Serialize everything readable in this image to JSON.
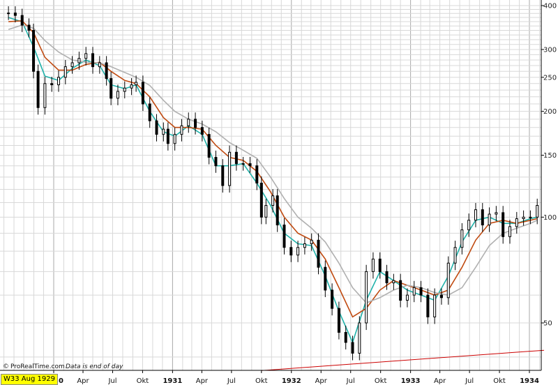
{
  "chart_data": {
    "type": "line",
    "title": "",
    "xlabel": "",
    "ylabel": "",
    "y_scale": "log",
    "ylim": [
      36,
      410
    ],
    "y_ticks": [
      50,
      100,
      150,
      200,
      250,
      300,
      400
    ],
    "grid": true,
    "x_tick_labels": [
      {
        "label": "1930",
        "date": "1930-01-01",
        "year": true
      },
      {
        "label": "Apr",
        "date": "1930-04-01",
        "year": false
      },
      {
        "label": "Jul",
        "date": "1930-07-01",
        "year": false
      },
      {
        "label": "Okt",
        "date": "1930-10-01",
        "year": false
      },
      {
        "label": "1931",
        "date": "1931-01-01",
        "year": true
      },
      {
        "label": "Apr",
        "date": "1931-04-01",
        "year": false
      },
      {
        "label": "Jul",
        "date": "1931-07-01",
        "year": false
      },
      {
        "label": "Okt",
        "date": "1931-10-01",
        "year": false
      },
      {
        "label": "1932",
        "date": "1932-01-01",
        "year": true
      },
      {
        "label": "Apr",
        "date": "1932-04-01",
        "year": false
      },
      {
        "label": "Jul",
        "date": "1932-07-01",
        "year": false
      },
      {
        "label": "Okt",
        "date": "1932-10-01",
        "year": false
      },
      {
        "label": "1933",
        "date": "1933-01-01",
        "year": true
      },
      {
        "label": "Apr",
        "date": "1933-04-01",
        "year": false
      },
      {
        "label": "Jul",
        "date": "1933-07-01",
        "year": false
      },
      {
        "label": "Okt",
        "date": "1933-10-01",
        "year": false
      },
      {
        "label": "1934",
        "date": "1934-01-01",
        "year": true
      }
    ],
    "series": [
      {
        "name": "",
        "kind": "candlestick",
        "color": "#000000",
        "points": [
          {
            "x": "1929-08-15",
            "y": 381
          },
          {
            "x": "1929-09-05",
            "y": 375
          },
          {
            "x": "1929-09-26",
            "y": 352
          },
          {
            "x": "1929-10-17",
            "y": 340
          },
          {
            "x": "1929-10-31",
            "y": 260
          },
          {
            "x": "1929-11-14",
            "y": 205
          },
          {
            "x": "1929-12-05",
            "y": 240
          },
          {
            "x": "1929-12-26",
            "y": 238
          },
          {
            "x": "1930-01-16",
            "y": 250
          },
          {
            "x": "1930-02-06",
            "y": 268
          },
          {
            "x": "1930-02-27",
            "y": 275
          },
          {
            "x": "1930-03-20",
            "y": 283
          },
          {
            "x": "1930-04-10",
            "y": 292
          },
          {
            "x": "1930-05-01",
            "y": 268
          },
          {
            "x": "1930-05-22",
            "y": 275
          },
          {
            "x": "1930-06-12",
            "y": 248
          },
          {
            "x": "1930-06-26",
            "y": 218
          },
          {
            "x": "1930-07-17",
            "y": 228
          },
          {
            "x": "1930-08-07",
            "y": 233
          },
          {
            "x": "1930-08-28",
            "y": 238
          },
          {
            "x": "1930-09-11",
            "y": 242
          },
          {
            "x": "1930-10-02",
            "y": 210
          },
          {
            "x": "1930-10-23",
            "y": 188
          },
          {
            "x": "1930-11-13",
            "y": 172
          },
          {
            "x": "1930-12-04",
            "y": 178
          },
          {
            "x": "1930-12-18",
            "y": 162
          },
          {
            "x": "1931-01-08",
            "y": 172
          },
          {
            "x": "1931-01-29",
            "y": 182
          },
          {
            "x": "1931-02-19",
            "y": 190
          },
          {
            "x": "1931-03-12",
            "y": 180
          },
          {
            "x": "1931-04-02",
            "y": 172
          },
          {
            "x": "1931-04-23",
            "y": 148
          },
          {
            "x": "1931-05-14",
            "y": 140
          },
          {
            "x": "1931-06-04",
            "y": 123
          },
          {
            "x": "1931-06-25",
            "y": 153
          },
          {
            "x": "1931-07-16",
            "y": 142
          },
          {
            "x": "1931-08-06",
            "y": 142
          },
          {
            "x": "1931-08-27",
            "y": 140
          },
          {
            "x": "1931-09-17",
            "y": 125
          },
          {
            "x": "1931-10-01",
            "y": 100
          },
          {
            "x": "1931-10-15",
            "y": 108
          },
          {
            "x": "1931-11-05",
            "y": 115
          },
          {
            "x": "1931-11-19",
            "y": 95
          },
          {
            "x": "1931-12-10",
            "y": 82
          },
          {
            "x": "1931-12-31",
            "y": 78
          },
          {
            "x": "1932-01-21",
            "y": 82
          },
          {
            "x": "1932-02-11",
            "y": 84
          },
          {
            "x": "1932-03-03",
            "y": 86
          },
          {
            "x": "1932-03-24",
            "y": 72
          },
          {
            "x": "1932-04-14",
            "y": 62
          },
          {
            "x": "1932-05-05",
            "y": 55
          },
          {
            "x": "1932-05-26",
            "y": 47
          },
          {
            "x": "1932-06-16",
            "y": 44
          },
          {
            "x": "1932-07-07",
            "y": 41
          },
          {
            "x": "1932-07-28",
            "y": 50
          },
          {
            "x": "1932-08-18",
            "y": 70
          },
          {
            "x": "1932-09-08",
            "y": 76
          },
          {
            "x": "1932-09-29",
            "y": 70
          },
          {
            "x": "1932-10-20",
            "y": 65
          },
          {
            "x": "1932-11-10",
            "y": 66
          },
          {
            "x": "1932-12-01",
            "y": 58
          },
          {
            "x": "1932-12-22",
            "y": 60
          },
          {
            "x": "1933-01-12",
            "y": 63
          },
          {
            "x": "1933-02-02",
            "y": 60
          },
          {
            "x": "1933-02-23",
            "y": 52
          },
          {
            "x": "1933-03-16",
            "y": 60
          },
          {
            "x": "1933-04-06",
            "y": 59
          },
          {
            "x": "1933-04-27",
            "y": 74
          },
          {
            "x": "1933-05-18",
            "y": 82
          },
          {
            "x": "1933-06-08",
            "y": 92
          },
          {
            "x": "1933-06-29",
            "y": 98
          },
          {
            "x": "1933-07-20",
            "y": 105
          },
          {
            "x": "1933-08-10",
            "y": 95
          },
          {
            "x": "1933-08-31",
            "y": 102
          },
          {
            "x": "1933-09-21",
            "y": 103
          },
          {
            "x": "1933-10-12",
            "y": 88
          },
          {
            "x": "1933-11-02",
            "y": 94
          },
          {
            "x": "1933-11-23",
            "y": 99
          },
          {
            "x": "1933-12-14",
            "y": 100
          },
          {
            "x": "1934-01-04",
            "y": 100
          },
          {
            "x": "1934-01-25",
            "y": 108
          }
        ]
      },
      {
        "name": "",
        "kind": "line",
        "color": "#20b2aa",
        "points": [
          {
            "x": "1929-08-15",
            "y": 370
          },
          {
            "x": "1929-09-26",
            "y": 360
          },
          {
            "x": "1929-10-31",
            "y": 305
          },
          {
            "x": "1929-12-05",
            "y": 252
          },
          {
            "x": "1930-01-16",
            "y": 245
          },
          {
            "x": "1930-02-27",
            "y": 265
          },
          {
            "x": "1930-04-10",
            "y": 280
          },
          {
            "x": "1930-05-22",
            "y": 270
          },
          {
            "x": "1930-06-26",
            "y": 238
          },
          {
            "x": "1930-08-07",
            "y": 232
          },
          {
            "x": "1930-09-11",
            "y": 238
          },
          {
            "x": "1930-10-23",
            "y": 200
          },
          {
            "x": "1930-12-04",
            "y": 175
          },
          {
            "x": "1931-01-08",
            "y": 170
          },
          {
            "x": "1931-02-19",
            "y": 182
          },
          {
            "x": "1931-04-02",
            "y": 172
          },
          {
            "x": "1931-05-14",
            "y": 140
          },
          {
            "x": "1931-06-25",
            "y": 140
          },
          {
            "x": "1931-08-06",
            "y": 142
          },
          {
            "x": "1931-09-17",
            "y": 125
          },
          {
            "x": "1931-10-29",
            "y": 108
          },
          {
            "x": "1931-12-10",
            "y": 90
          },
          {
            "x": "1932-01-21",
            "y": 84
          },
          {
            "x": "1932-03-03",
            "y": 83
          },
          {
            "x": "1932-04-14",
            "y": 68
          },
          {
            "x": "1932-05-26",
            "y": 54
          },
          {
            "x": "1932-07-07",
            "y": 44
          },
          {
            "x": "1932-08-18",
            "y": 58
          },
          {
            "x": "1932-09-29",
            "y": 70
          },
          {
            "x": "1932-11-10",
            "y": 66
          },
          {
            "x": "1932-12-22",
            "y": 62
          },
          {
            "x": "1933-02-02",
            "y": 60
          },
          {
            "x": "1933-03-16",
            "y": 58
          },
          {
            "x": "1933-04-27",
            "y": 68
          },
          {
            "x": "1933-06-08",
            "y": 85
          },
          {
            "x": "1933-07-20",
            "y": 98
          },
          {
            "x": "1933-08-31",
            "y": 100
          },
          {
            "x": "1933-10-12",
            "y": 96
          },
          {
            "x": "1933-11-23",
            "y": 96
          },
          {
            "x": "1934-01-04",
            "y": 99
          },
          {
            "x": "1934-01-25",
            "y": 100
          }
        ]
      },
      {
        "name": "",
        "kind": "line",
        "color": "#c04a10",
        "points": [
          {
            "x": "1929-08-15",
            "y": 360
          },
          {
            "x": "1929-09-26",
            "y": 362
          },
          {
            "x": "1929-10-31",
            "y": 335
          },
          {
            "x": "1929-12-05",
            "y": 285
          },
          {
            "x": "1930-01-16",
            "y": 262
          },
          {
            "x": "1930-02-27",
            "y": 262
          },
          {
            "x": "1930-04-10",
            "y": 272
          },
          {
            "x": "1930-05-22",
            "y": 276
          },
          {
            "x": "1930-06-26",
            "y": 260
          },
          {
            "x": "1930-08-07",
            "y": 245
          },
          {
            "x": "1930-09-11",
            "y": 240
          },
          {
            "x": "1930-10-23",
            "y": 220
          },
          {
            "x": "1930-12-04",
            "y": 192
          },
          {
            "x": "1931-01-08",
            "y": 180
          },
          {
            "x": "1931-02-19",
            "y": 180
          },
          {
            "x": "1931-04-02",
            "y": 178
          },
          {
            "x": "1931-05-14",
            "y": 160
          },
          {
            "x": "1931-06-25",
            "y": 148
          },
          {
            "x": "1931-08-06",
            "y": 145
          },
          {
            "x": "1931-09-17",
            "y": 135
          },
          {
            "x": "1931-10-29",
            "y": 118
          },
          {
            "x": "1931-12-10",
            "y": 100
          },
          {
            "x": "1932-01-21",
            "y": 90
          },
          {
            "x": "1932-03-03",
            "y": 86
          },
          {
            "x": "1932-04-14",
            "y": 76
          },
          {
            "x": "1932-05-26",
            "y": 63
          },
          {
            "x": "1932-07-07",
            "y": 52
          },
          {
            "x": "1932-08-18",
            "y": 55
          },
          {
            "x": "1932-09-29",
            "y": 62
          },
          {
            "x": "1932-11-10",
            "y": 66
          },
          {
            "x": "1932-12-22",
            "y": 64
          },
          {
            "x": "1933-02-02",
            "y": 62
          },
          {
            "x": "1933-03-16",
            "y": 60
          },
          {
            "x": "1933-04-27",
            "y": 62
          },
          {
            "x": "1933-06-08",
            "y": 72
          },
          {
            "x": "1933-07-20",
            "y": 86
          },
          {
            "x": "1933-08-31",
            "y": 96
          },
          {
            "x": "1933-10-12",
            "y": 98
          },
          {
            "x": "1933-11-23",
            "y": 96
          },
          {
            "x": "1934-01-04",
            "y": 98
          },
          {
            "x": "1934-01-25",
            "y": 99
          }
        ]
      },
      {
        "name": "",
        "kind": "line",
        "color": "#b0b0b0",
        "points": [
          {
            "x": "1929-08-15",
            "y": 342
          },
          {
            "x": "1929-09-26",
            "y": 352
          },
          {
            "x": "1929-10-31",
            "y": 345
          },
          {
            "x": "1929-12-05",
            "y": 318
          },
          {
            "x": "1930-01-16",
            "y": 295
          },
          {
            "x": "1930-02-27",
            "y": 280
          },
          {
            "x": "1930-04-10",
            "y": 276
          },
          {
            "x": "1930-05-22",
            "y": 275
          },
          {
            "x": "1930-06-26",
            "y": 268
          },
          {
            "x": "1930-08-07",
            "y": 258
          },
          {
            "x": "1930-09-11",
            "y": 250
          },
          {
            "x": "1930-10-23",
            "y": 237
          },
          {
            "x": "1930-12-04",
            "y": 215
          },
          {
            "x": "1931-01-08",
            "y": 200
          },
          {
            "x": "1931-02-19",
            "y": 190
          },
          {
            "x": "1931-04-02",
            "y": 184
          },
          {
            "x": "1931-05-14",
            "y": 175
          },
          {
            "x": "1931-06-25",
            "y": 163
          },
          {
            "x": "1931-08-06",
            "y": 155
          },
          {
            "x": "1931-09-17",
            "y": 147
          },
          {
            "x": "1931-10-29",
            "y": 130
          },
          {
            "x": "1931-12-10",
            "y": 113
          },
          {
            "x": "1932-01-21",
            "y": 100
          },
          {
            "x": "1932-03-03",
            "y": 93
          },
          {
            "x": "1932-04-14",
            "y": 85
          },
          {
            "x": "1932-05-26",
            "y": 74
          },
          {
            "x": "1932-07-07",
            "y": 63
          },
          {
            "x": "1932-08-18",
            "y": 57
          },
          {
            "x": "1932-09-29",
            "y": 59
          },
          {
            "x": "1932-11-10",
            "y": 62
          },
          {
            "x": "1932-12-22",
            "y": 64
          },
          {
            "x": "1933-02-02",
            "y": 63
          },
          {
            "x": "1933-03-16",
            "y": 61
          },
          {
            "x": "1933-04-27",
            "y": 60
          },
          {
            "x": "1933-06-08",
            "y": 63
          },
          {
            "x": "1933-07-20",
            "y": 72
          },
          {
            "x": "1933-08-31",
            "y": 83
          },
          {
            "x": "1933-10-12",
            "y": 90
          },
          {
            "x": "1933-11-23",
            "y": 93
          },
          {
            "x": "1934-01-04",
            "y": 96
          },
          {
            "x": "1934-01-25",
            "y": 98
          }
        ]
      },
      {
        "name": "",
        "kind": "trendline",
        "color": "#cc0000",
        "points": [
          {
            "x": "1931-10-01",
            "y": 36.6
          },
          {
            "x": "1934-02-15",
            "y": 41.8
          }
        ]
      }
    ]
  },
  "colors": {
    "background": "#ffffff",
    "grid": "#d8d8d8",
    "grid_major": "#a8a8a8",
    "axis": "#000000",
    "badge": "#ffff00"
  },
  "footer": {
    "credit": "ProRealTime.com",
    "note": "Data is end of day",
    "week_badge": "W33 Aug 1929"
  }
}
